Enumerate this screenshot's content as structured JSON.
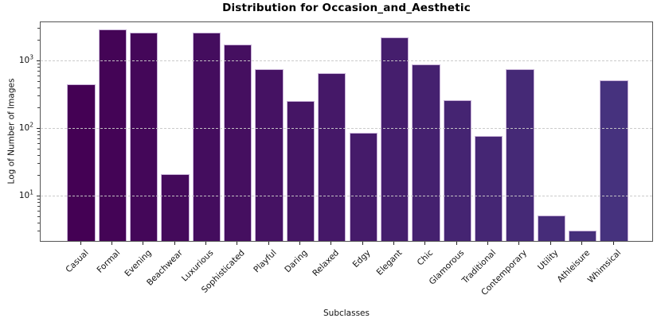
{
  "chart_data": {
    "type": "bar",
    "title": "Distribution for Occasion_and_Aesthetic",
    "xlabel": "Subclasses",
    "ylabel": "Log of Number of Images",
    "yscale": "log",
    "ylim": [
      2.08,
      3775
    ],
    "grid": {
      "axis": "y",
      "style": "dashed",
      "color": "#c9c9c9",
      "above_bars": true
    },
    "categories": [
      "Casual",
      "Formal",
      "Evening",
      "Beachwear",
      "Luxurious",
      "Sophisticated",
      "Playful",
      "Daring",
      "Relaxed",
      "Edgy",
      "Elegant",
      "Chic",
      "Glamorous",
      "Traditional",
      "Contemporary",
      "Utility",
      "Athleisure",
      "Whimsical"
    ],
    "values": [
      430,
      2800,
      2550,
      20,
      2500,
      1680,
      730,
      245,
      630,
      83,
      2150,
      850,
      255,
      75,
      720,
      5,
      3,
      490
    ],
    "bar_colors": [
      "#440154",
      "#440456",
      "#440759",
      "#440a5b",
      "#440d5e",
      "#450f60",
      "#451263",
      "#451565",
      "#451868",
      "#451b6a",
      "#451e6d",
      "#45216f",
      "#452472",
      "#452674",
      "#452976",
      "#462c79",
      "#462f7b",
      "#46327e"
    ],
    "bar_edge_color": "#c9b3d9",
    "yticks": [
      {
        "value": 10,
        "base": "10",
        "exp": "1"
      },
      {
        "value": 100,
        "base": "10",
        "exp": "2"
      },
      {
        "value": 1000,
        "base": "10",
        "exp": "3"
      }
    ],
    "minor_tick_mantissas": [
      2,
      3,
      4,
      5,
      6,
      7,
      8,
      9
    ],
    "minor_tick_decades": [
      1,
      10,
      100,
      1000
    ],
    "axis_color": "#555555",
    "tick_color": "#222222"
  }
}
